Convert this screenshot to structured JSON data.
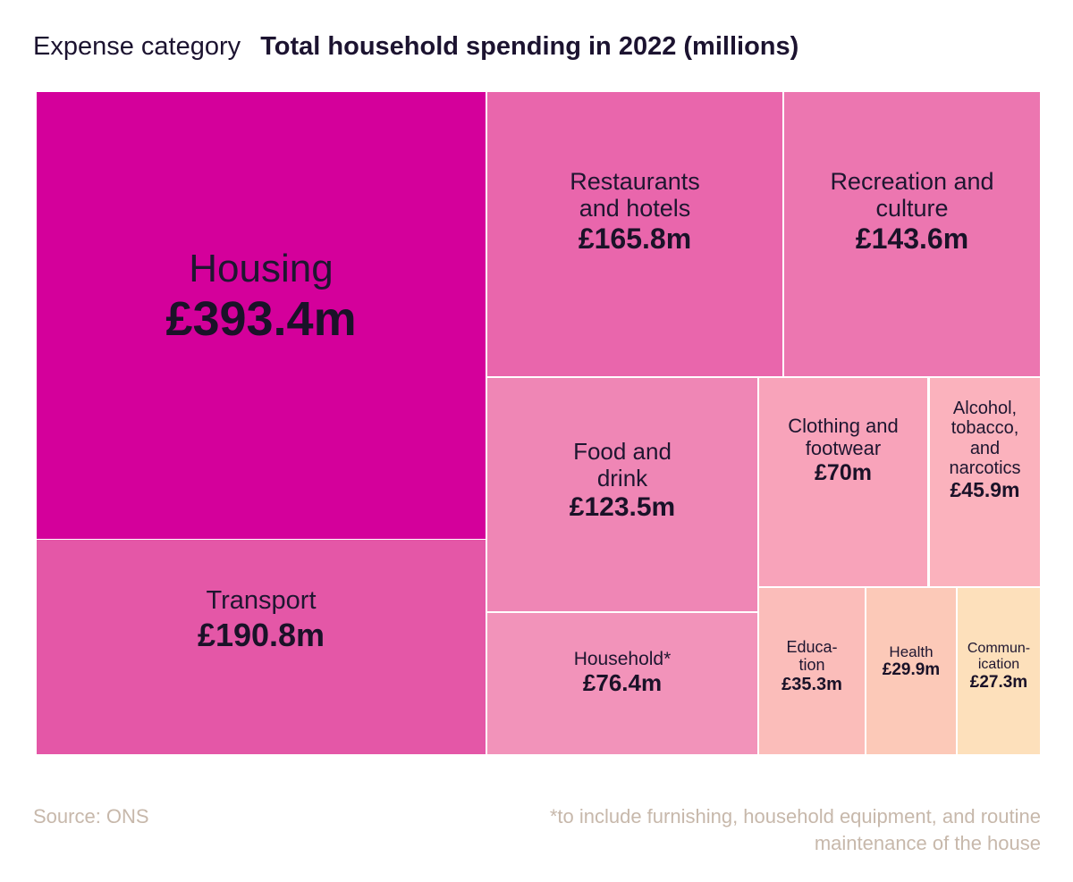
{
  "header": {
    "category_label": "Expense category",
    "title": "Total household spending in 2022 (millions)"
  },
  "chart_data": {
    "type": "treemap",
    "title": "Total household spending in 2022 (millions)",
    "subtitle": "Expense category",
    "unit": "£ millions",
    "items": [
      {
        "name": "Housing",
        "label": "Housing",
        "value": 393.4,
        "display": "£393.4m",
        "color": "#d4009b"
      },
      {
        "name": "Transport",
        "label": "Transport",
        "value": 190.8,
        "display": "£190.8m",
        "color": "#e457a7"
      },
      {
        "name": "Restaurants and hotels",
        "label": "Restaurants\nand hotels",
        "value": 165.8,
        "display": "£165.8m",
        "color": "#e966ac"
      },
      {
        "name": "Recreation and culture",
        "label": "Recreation and\nculture",
        "value": 143.6,
        "display": "£143.6m",
        "color": "#ec76b0"
      },
      {
        "name": "Food and drink",
        "label": "Food and\ndrink",
        "value": 123.5,
        "display": "£123.5m",
        "color": "#ef86b5"
      },
      {
        "name": "Household*",
        "label": "Household*",
        "value": 76.4,
        "display": "£76.4m",
        "color": "#f293ba"
      },
      {
        "name": "Clothing and footwear",
        "label": "Clothing and\nfootwear",
        "value": 70,
        "display": "£70m",
        "color": "#f8a3ba"
      },
      {
        "name": "Alcohol, tobacco, and narcotics",
        "label": "Alcohol,\ntobacco,\nand\nnarcotics",
        "value": 45.9,
        "display": "£45.9m",
        "color": "#fbb2bd"
      },
      {
        "name": "Education",
        "label": "Educa-\ntion",
        "value": 35.3,
        "display": "£35.3m",
        "color": "#fbbdba"
      },
      {
        "name": "Health",
        "label": "Health",
        "value": 29.9,
        "display": "£29.9m",
        "color": "#fcc9b8"
      },
      {
        "name": "Communication",
        "label": "Commun-\nication",
        "value": 27.3,
        "display": "£27.3m",
        "color": "#fde0bb"
      }
    ]
  },
  "footer": {
    "source": "Source: ONS",
    "note": "*to include furnishing, household equipment, and routine maintenance of the house"
  }
}
